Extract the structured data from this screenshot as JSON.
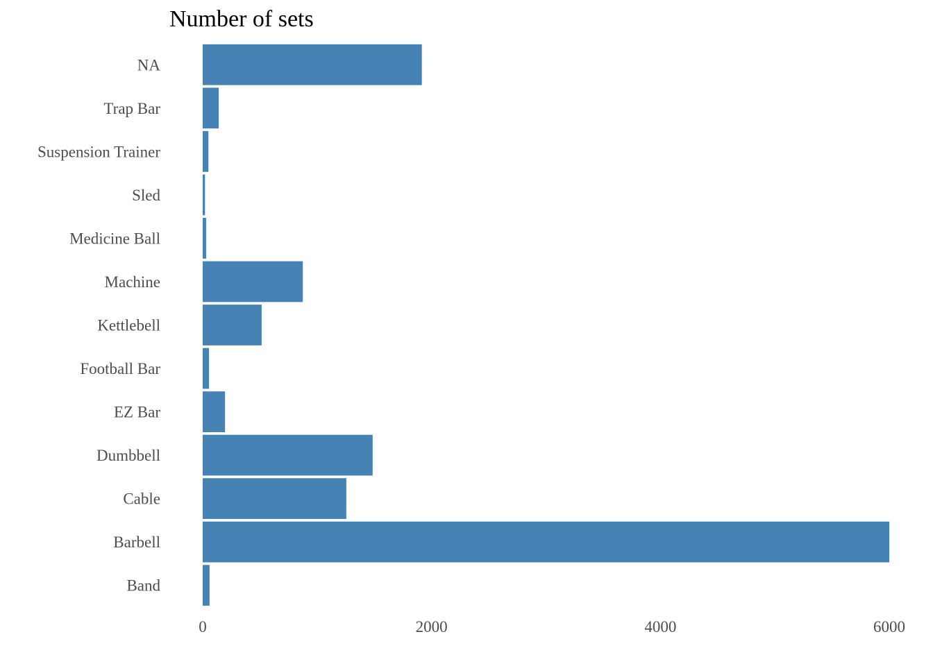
{
  "chart_data": {
    "type": "bar",
    "orientation": "horizontal",
    "title": "Number of sets",
    "xlabel": "",
    "ylabel": "",
    "categories": [
      "Band",
      "Barbell",
      "Cable",
      "Dumbbell",
      "EZ Bar",
      "Football Bar",
      "Kettlebell",
      "Machine",
      "Medicine Ball",
      "Sled",
      "Suspension Trainer",
      "Trap Bar",
      "NA"
    ],
    "values": [
      60,
      6000,
      1255,
      1485,
      195,
      55,
      515,
      875,
      30,
      20,
      50,
      140,
      1915
    ],
    "xlim": [
      0,
      6000
    ],
    "xticks": [
      0,
      2000,
      4000,
      6000
    ],
    "xtick_labels": [
      "0",
      "2000",
      "4000",
      "6000"
    ],
    "grid": false,
    "legend": "none",
    "bar_color": "#4682B4"
  }
}
